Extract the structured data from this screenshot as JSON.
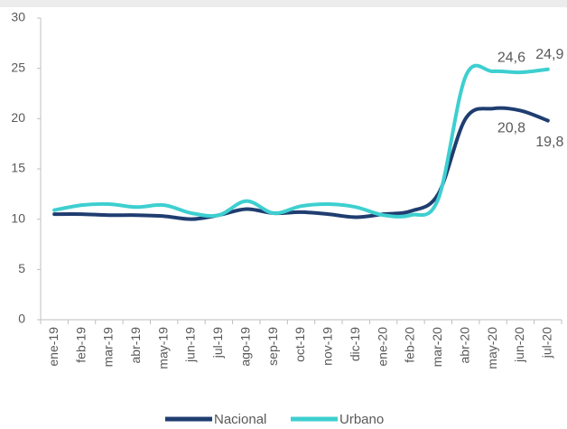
{
  "chart_data": {
    "type": "line",
    "categories": [
      "ene-19",
      "feb-19",
      "mar-19",
      "abr-19",
      "may-19",
      "jun-19",
      "jul-19",
      "ago-19",
      "sep-19",
      "oct-19",
      "nov-19",
      "dic-19",
      "ene-20",
      "feb-20",
      "mar-20",
      "abr-20",
      "may-20",
      "jun-20",
      "jul-20"
    ],
    "series": [
      {
        "name": "Nacional",
        "color": "#1f3d70",
        "values": [
          10.5,
          10.5,
          10.4,
          10.4,
          10.3,
          10.0,
          10.4,
          11.0,
          10.6,
          10.7,
          10.5,
          10.2,
          10.5,
          10.8,
          12.5,
          20.0,
          21.0,
          20.8,
          19.8
        ],
        "value_labels": [
          null,
          null,
          null,
          null,
          null,
          null,
          null,
          null,
          null,
          null,
          null,
          null,
          null,
          null,
          null,
          null,
          null,
          "20,8",
          "19,8"
        ]
      },
      {
        "name": "Urbano",
        "color": "#3ecfd0",
        "values": [
          10.9,
          11.4,
          11.5,
          11.2,
          11.4,
          10.6,
          10.4,
          11.8,
          10.6,
          11.3,
          11.5,
          11.2,
          10.4,
          10.4,
          12.0,
          24.2,
          24.7,
          24.6,
          24.9
        ],
        "value_labels": [
          null,
          null,
          null,
          null,
          null,
          null,
          null,
          null,
          null,
          null,
          null,
          null,
          null,
          null,
          null,
          null,
          null,
          "24,6",
          "24,9"
        ]
      }
    ],
    "ylim": [
      0,
      30
    ],
    "yticks": [
      0,
      5,
      10,
      15,
      20,
      25,
      30
    ],
    "grid": false,
    "legend": "bottom"
  }
}
